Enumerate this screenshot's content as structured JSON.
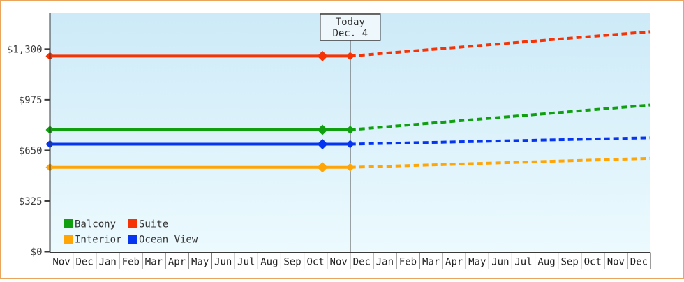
{
  "chart_data": {
    "type": "line",
    "title": "",
    "description_visible_text_only": true,
    "total_months": 26,
    "x_months": [
      "Nov",
      "Dec",
      "Jan",
      "Feb",
      "Mar",
      "Apr",
      "May",
      "Jun",
      "Jul",
      "Aug",
      "Sep",
      "Oct",
      "Nov",
      "Dec",
      "Jan",
      "Feb",
      "Mar",
      "Apr",
      "May",
      "Jun",
      "Jul",
      "Aug",
      "Sep",
      "Oct",
      "Nov",
      "Dec"
    ],
    "y_ticks": [
      {
        "label": "$0",
        "value": 0
      },
      {
        "label": "$325",
        "value": 325
      },
      {
        "label": "$650",
        "value": 650
      },
      {
        "label": "$975",
        "value": 975
      },
      {
        "label": "$1,300",
        "value": 1300
      }
    ],
    "ylim": [
      0,
      1530
    ],
    "grid": false,
    "today": {
      "label_line1": "Today",
      "label_line2": "Dec. 4",
      "month_offset": 13
    },
    "observation_month_offsets": [
      0,
      11.8,
      13
    ],
    "series": [
      {
        "name": "Suite",
        "color": "#f53305",
        "current_price": 1255,
        "projected_end_price": 1412
      },
      {
        "name": "Balcony",
        "color": "#0f9f0f",
        "current_price": 782,
        "projected_end_price": 941
      },
      {
        "name": "Ocean View",
        "color": "#0535f0",
        "current_price": 690,
        "projected_end_price": 731
      },
      {
        "name": "Interior",
        "color": "#ffa505",
        "current_price": 541,
        "projected_end_price": 599
      }
    ],
    "segment_styles": {
      "historical": "solid flat line from chart start to today",
      "projected": "dashed rising line from today to chart end"
    },
    "legend": {
      "position": "bottom-left-inside",
      "rows": [
        [
          "Balcony",
          "Suite"
        ],
        [
          "Interior",
          "Ocean View"
        ]
      ]
    },
    "colors": {
      "outer_border": "#e9a55e",
      "page_bg": "#ffffff",
      "plot_bg_top": "#cdeaf8",
      "plot_bg_bottom": "#ecfafe",
      "axis": "#3a3a3a",
      "tick_text": "#3d3d3d",
      "month_text": "#222222",
      "legend_text": "#333333",
      "today_box_bg": "#eef7fc",
      "today_box_border": "#3a3a3a",
      "today_line": "#4a4a4a",
      "today_text": "#333333"
    }
  }
}
